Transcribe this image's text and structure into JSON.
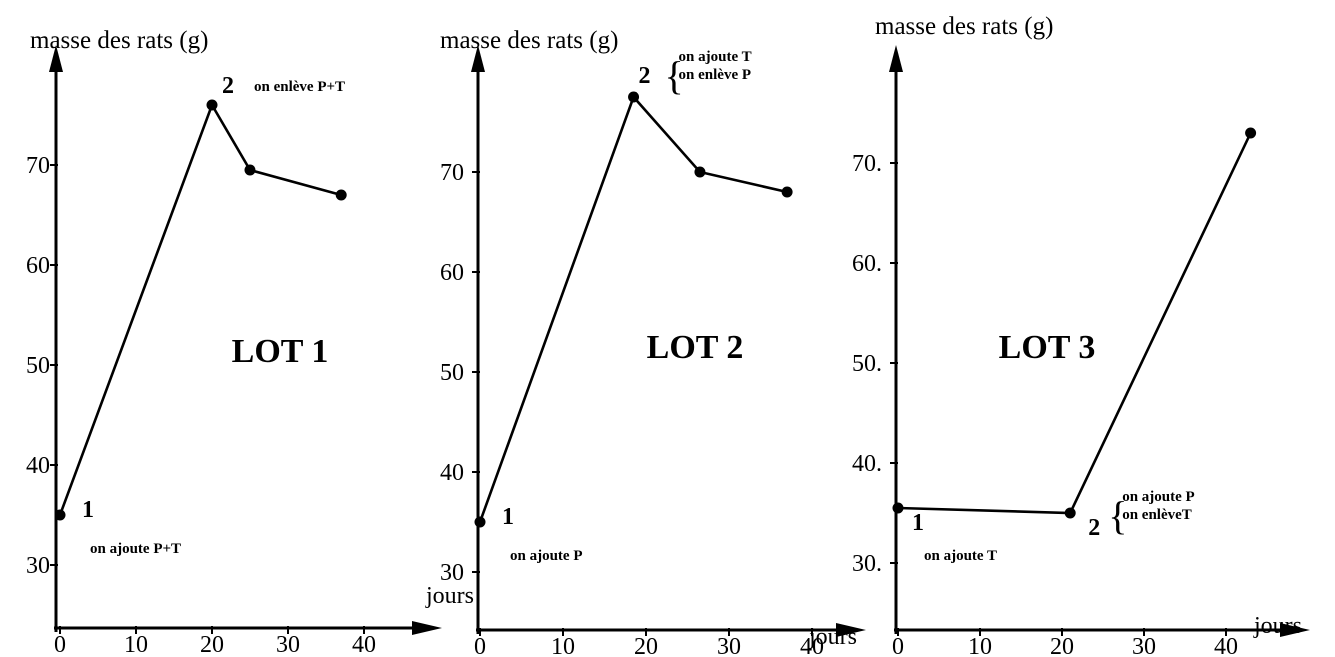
{
  "chart_data": [
    {
      "type": "line",
      "title": "LOT 1",
      "ylabel": "masse des rats (g)",
      "xlabel": "",
      "x_ticks": [
        "0",
        "10",
        "20",
        "30",
        "40"
      ],
      "y_ticks": [
        "30",
        "40",
        "50",
        "60",
        "70"
      ],
      "xlim": [
        0,
        45
      ],
      "ylim": [
        26,
        90
      ],
      "series": [
        {
          "x": [
            0,
            20,
            25,
            37
          ],
          "y": [
            35,
            76,
            69.5,
            67
          ]
        }
      ],
      "annotations": [
        {
          "number": "1",
          "lines": [
            "on ajoute P+T"
          ],
          "x": 0,
          "y": 35
        },
        {
          "number": "2",
          "lines": [
            "on enlève P+T"
          ],
          "x": 20,
          "y": 76
        }
      ]
    },
    {
      "type": "line",
      "title": "LOT 2",
      "ylabel": "masse des rats (g)",
      "xlabel": "jours",
      "x_ticks": [
        "0",
        "10",
        "20",
        "30",
        "40"
      ],
      "y_ticks": [
        "30",
        "40",
        "50",
        "60",
        "70"
      ],
      "xlim": [
        0,
        45
      ],
      "ylim": [
        26,
        90
      ],
      "series": [
        {
          "x": [
            0,
            18.5,
            26.5,
            37
          ],
          "y": [
            35,
            77.5,
            70,
            68
          ]
        }
      ],
      "annotations": [
        {
          "number": "1",
          "lines": [
            "on ajoute P"
          ],
          "x": 0,
          "y": 35
        },
        {
          "number": "2",
          "lines": [
            "on ajoute T",
            "on enlève P"
          ],
          "x": 18.5,
          "y": 77.5
        }
      ]
    },
    {
      "type": "line",
      "title": "LOT 3",
      "ylabel": "masse des rats (g)",
      "xlabel": "jours",
      "x_ticks": [
        "0",
        "10",
        "20",
        "30",
        "40"
      ],
      "y_ticks": [
        "30.",
        "40.",
        "50.",
        "60.",
        "70."
      ],
      "xlim": [
        0,
        48
      ],
      "ylim": [
        25,
        82
      ],
      "series": [
        {
          "x": [
            0,
            21,
            43
          ],
          "y": [
            35.5,
            35,
            73
          ]
        }
      ],
      "annotations": [
        {
          "number": "1",
          "lines": [
            "on ajoute T"
          ],
          "x": 0,
          "y": 35.5
        },
        {
          "number": "2",
          "lines": [
            "on ajoute P",
            "on enlèveT"
          ],
          "x": 21,
          "y": 35
        }
      ]
    },
    {
      "xlabel": "jours"
    }
  ]
}
